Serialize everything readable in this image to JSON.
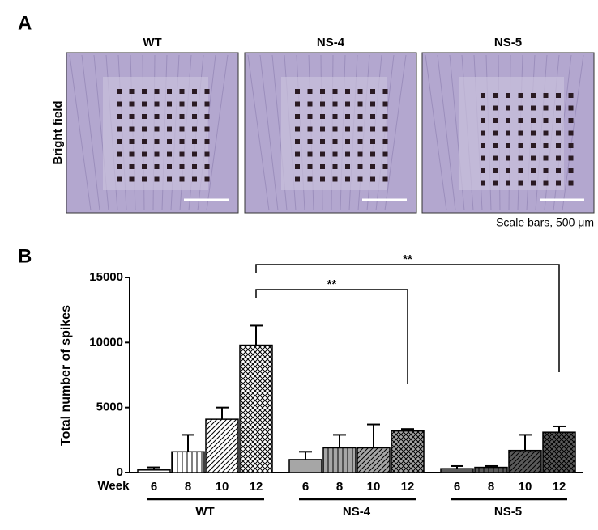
{
  "panel_a": {
    "label": "A",
    "ylabel": "Bright field",
    "images": [
      "WT",
      "NS-4",
      "NS-5"
    ],
    "scale_note": "Scale bars, 500 μm"
  },
  "chart_data": {
    "type": "bar",
    "label": "B",
    "ylabel": "Total number of spikes",
    "xlabel": "Week",
    "categories": [
      "WT",
      "NS-4",
      "NS-5"
    ],
    "colors": [
      "#ffffff",
      "#a6a6a6",
      "#5a5a5a"
    ],
    "series": [
      {
        "name": "6",
        "pattern": "none",
        "values": [
          200,
          1000,
          300
        ],
        "errors": [
          200,
          600,
          200
        ]
      },
      {
        "name": "8",
        "pattern": "vertical",
        "values": [
          1600,
          1900,
          400
        ],
        "errors": [
          1300,
          1000,
          100
        ]
      },
      {
        "name": "10",
        "pattern": "diagonal",
        "values": [
          4100,
          1900,
          1700
        ],
        "errors": [
          900,
          1800,
          1200
        ]
      },
      {
        "name": "12",
        "pattern": "crosshatch",
        "values": [
          9800,
          3200,
          3100
        ],
        "errors": [
          1500,
          150,
          450
        ]
      }
    ],
    "significance": [
      "**",
      "**"
    ],
    "ylim": [
      0,
      15000
    ],
    "yticks": [
      0,
      5000,
      10000,
      15000
    ]
  }
}
